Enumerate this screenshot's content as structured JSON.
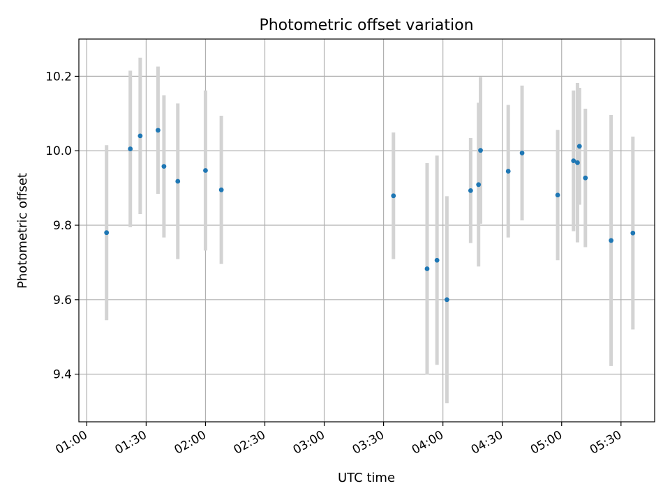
{
  "chart_data": {
    "type": "scatter",
    "title": "Photometric offset variation",
    "xlabel": "UTC time",
    "ylabel": "Photometric offset",
    "x_unit": "UTC time of day",
    "xlim": [
      "00:56",
      "05:47"
    ],
    "ylim": [
      9.272,
      10.3
    ],
    "x_ticks": [
      "01:00",
      "01:30",
      "02:00",
      "02:30",
      "03:00",
      "03:30",
      "04:00",
      "04:30",
      "05:00",
      "05:30"
    ],
    "y_ticks": [
      "9.4",
      "9.6",
      "9.8",
      "10.0",
      "10.2"
    ],
    "grid": true,
    "legend": "none",
    "marker_color": "#1f77b4",
    "errorbar_color": "#d3d3d3",
    "points": [
      {
        "time": "01:10",
        "y": 9.78,
        "yerr": 0.235
      },
      {
        "time": "01:22",
        "y": 10.005,
        "yerr": 0.21
      },
      {
        "time": "01:27",
        "y": 10.04,
        "yerr": 0.21
      },
      {
        "time": "01:36",
        "y": 10.055,
        "yerr": 0.171
      },
      {
        "time": "01:39",
        "y": 9.958,
        "yerr": 0.191
      },
      {
        "time": "01:46",
        "y": 9.918,
        "yerr": 0.209
      },
      {
        "time": "02:00",
        "y": 9.947,
        "yerr": 0.215
      },
      {
        "time": "02:08",
        "y": 9.895,
        "yerr": 0.199
      },
      {
        "time": "03:35",
        "y": 9.879,
        "yerr": 0.17
      },
      {
        "time": "03:52",
        "y": 9.683,
        "yerr": 0.284
      },
      {
        "time": "03:57",
        "y": 9.706,
        "yerr": 0.281
      },
      {
        "time": "04:02",
        "y": 9.6,
        "yerr": 0.278
      },
      {
        "time": "04:14",
        "y": 9.893,
        "yerr": 0.141
      },
      {
        "time": "04:18",
        "y": 9.909,
        "yerr": 0.22
      },
      {
        "time": "04:19",
        "y": 10.001,
        "yerr": 0.197
      },
      {
        "time": "04:33",
        "y": 9.945,
        "yerr": 0.178
      },
      {
        "time": "04:40",
        "y": 9.994,
        "yerr": 0.181
      },
      {
        "time": "04:58",
        "y": 9.881,
        "yerr": 0.175
      },
      {
        "time": "05:06",
        "y": 9.973,
        "yerr": 0.189
      },
      {
        "time": "05:08",
        "y": 9.968,
        "yerr": 0.214
      },
      {
        "time": "05:09",
        "y": 10.012,
        "yerr": 0.157
      },
      {
        "time": "05:12",
        "y": 9.927,
        "yerr": 0.186
      },
      {
        "time": "05:25",
        "y": 9.759,
        "yerr": 0.337
      },
      {
        "time": "05:36",
        "y": 9.779,
        "yerr": 0.259
      }
    ]
  }
}
